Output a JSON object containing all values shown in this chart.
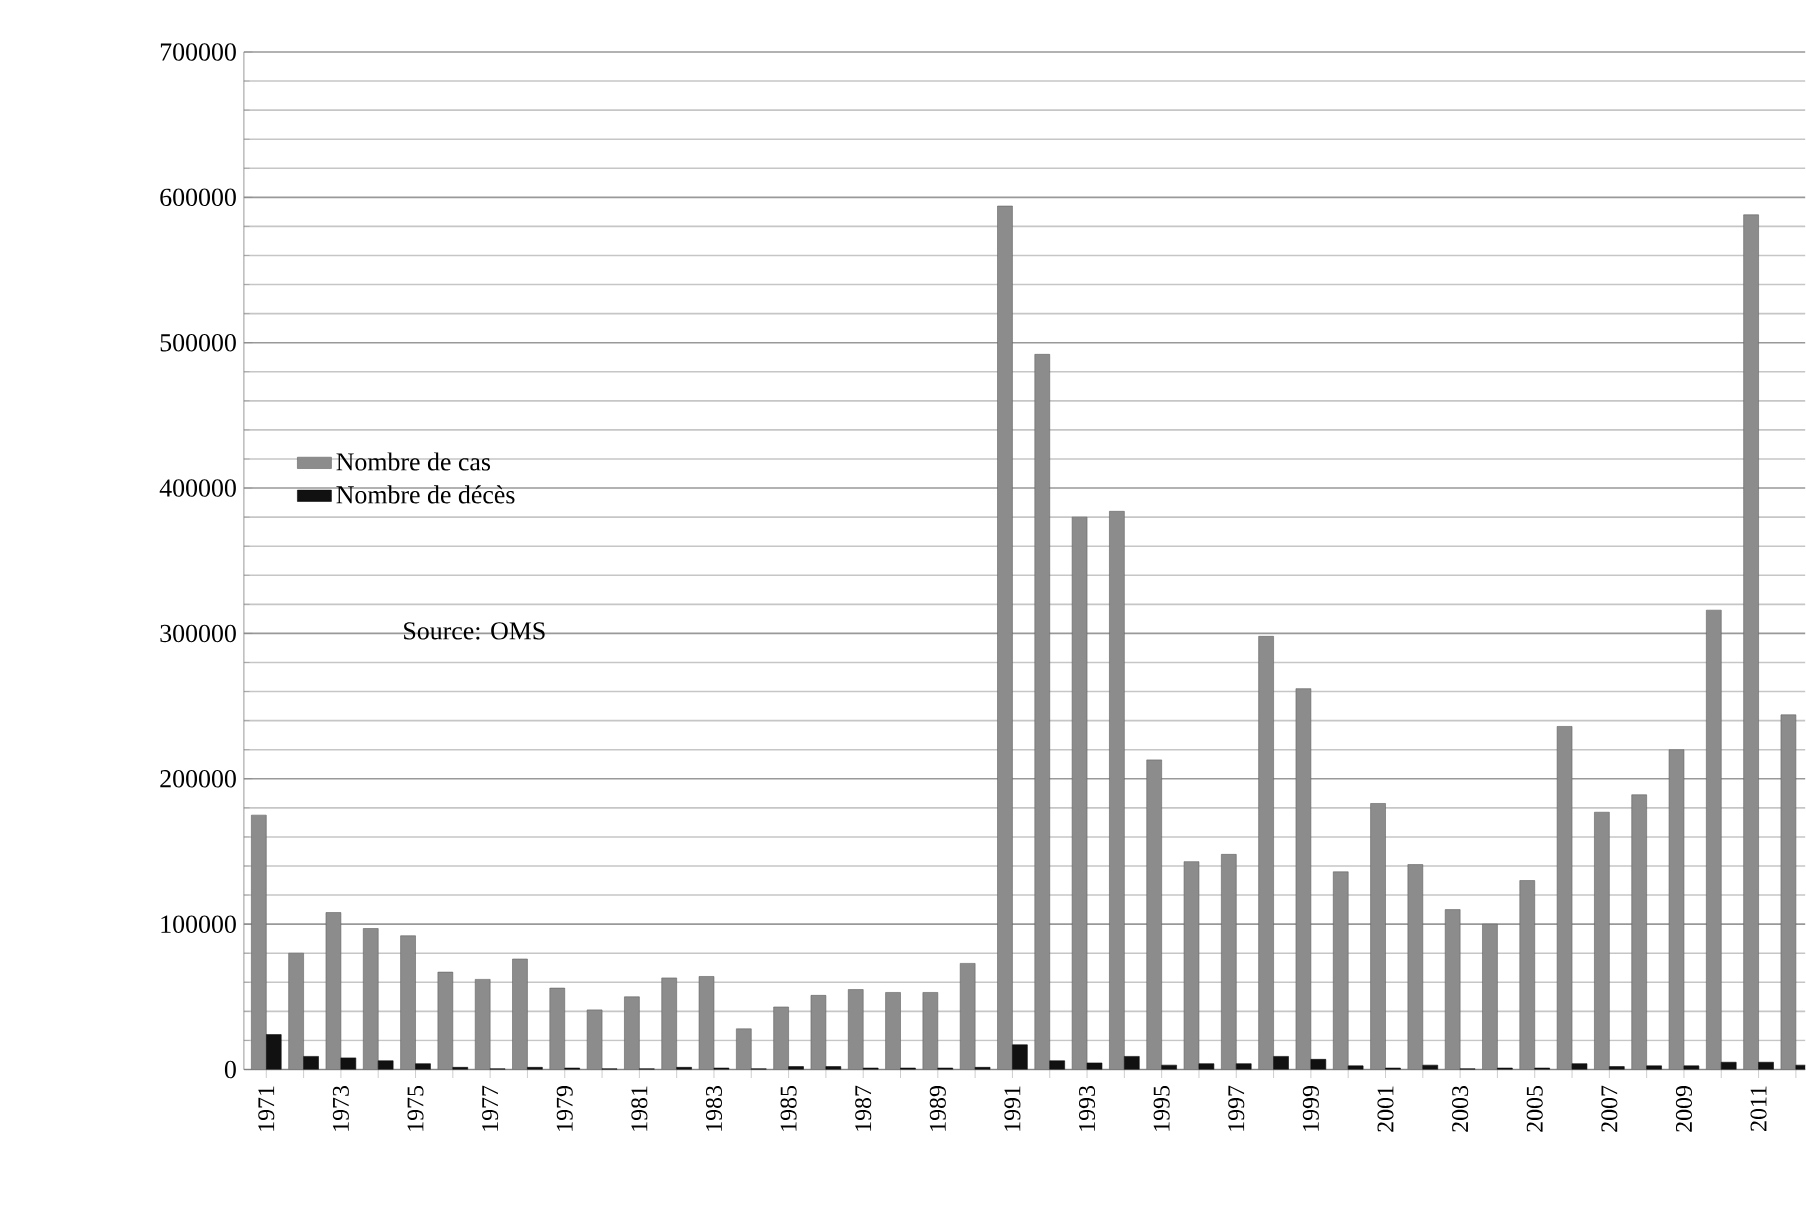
{
  "chart_data": {
    "type": "bar",
    "categories": [
      "1971",
      null,
      "1973",
      null,
      "1975",
      null,
      "1977",
      null,
      "1979",
      null,
      "1981",
      null,
      "1983",
      null,
      "1985",
      null,
      "1987",
      null,
      "1989",
      null,
      "1991",
      null,
      "1993",
      null,
      "1995",
      null,
      "1997",
      null,
      "1999",
      null,
      "2001",
      null,
      "2003",
      null,
      "2005",
      null,
      "2007",
      null,
      "2009",
      null,
      "2011",
      null
    ],
    "series": [
      {
        "name": "Nombre de cas",
        "color": "#8c8c8c",
        "values": [
          175000,
          80000,
          108000,
          97000,
          92000,
          67000,
          62000,
          76000,
          56000,
          41000,
          50000,
          63000,
          64000,
          28000,
          43000,
          51000,
          55000,
          53000,
          53000,
          73000,
          594000,
          492000,
          380000,
          384000,
          213000,
          143000,
          148000,
          298000,
          262000,
          136000,
          183000,
          141000,
          110000,
          100000,
          130000,
          236000,
          177000,
          189000,
          220000,
          316000,
          588000,
          244000
        ]
      },
      {
        "name": "Nombre de décès",
        "color": "#111111",
        "values": [
          24000,
          9000,
          8000,
          6000,
          4000,
          1500,
          500,
          1500,
          1000,
          500,
          500,
          1500,
          1000,
          500,
          2000,
          2000,
          1000,
          1000,
          1000,
          1500,
          17000,
          6000,
          4500,
          9000,
          3000,
          4000,
          4000,
          9000,
          7000,
          2500,
          1000,
          3000,
          500,
          1000,
          1000,
          4000,
          2000,
          2500,
          2500,
          5000,
          5000,
          3000
        ]
      }
    ],
    "ylim": [
      0,
      700000
    ],
    "yticks": [
      0,
      100000,
      200000,
      300000,
      400000,
      500000,
      600000,
      700000
    ],
    "grid": "y",
    "legend": "left",
    "annotations": [
      "Source: OMS"
    ]
  }
}
